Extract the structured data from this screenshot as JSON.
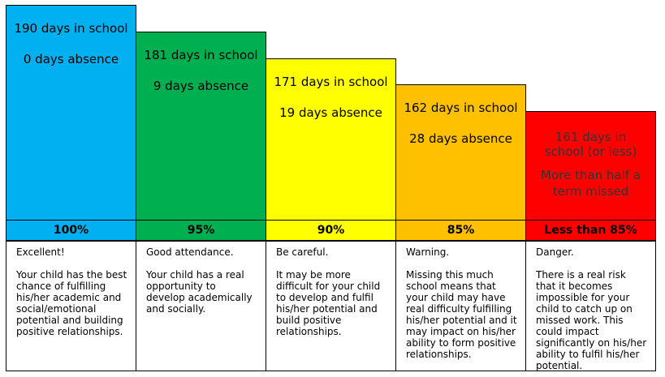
{
  "columns": [
    {
      "key": "col1",
      "days": "190 days in school",
      "absence": "0 days absence",
      "percent": "100%",
      "heading": "Excellent!",
      "description": "Your child has the best chance of fulfilling his/her academic and social/emotional potential and building positive relationships.",
      "color": "#00b0f0"
    },
    {
      "key": "col2",
      "days": "181 days in school",
      "absence": "9 days absence",
      "percent": "95%",
      "heading": "Good attendance.",
      "description": "Your child has a real opportunity to develop academically and socially.",
      "color": "#00b050"
    },
    {
      "key": "col3",
      "days": "171 days in school",
      "absence": "19 days absence",
      "percent": "90%",
      "heading": "Be careful.",
      "description": "It may be more difficult for your child to develop and fulfil his/her potential and build positive relationships.",
      "color": "#ffff00"
    },
    {
      "key": "col4",
      "days": "162 days in school",
      "absence": "28 days absence",
      "percent": "85%",
      "heading": "Warning.",
      "description": "Missing this much school means that your child may have real difficulty fulfilling his/her potential and it may impact on his/her ability to form positive relationships.",
      "color": "#ffc000"
    },
    {
      "key": "col5",
      "days": "161 days in school (or less)",
      "absence": "More than half a term missed",
      "percent": "Less than 85%",
      "heading": "Danger.",
      "description": "There is a real risk that it becomes impossible for your child to catch up on missed work. This could impact significantly on his/her ability to fulfil his/her potential.",
      "color": "#ff0000"
    }
  ]
}
